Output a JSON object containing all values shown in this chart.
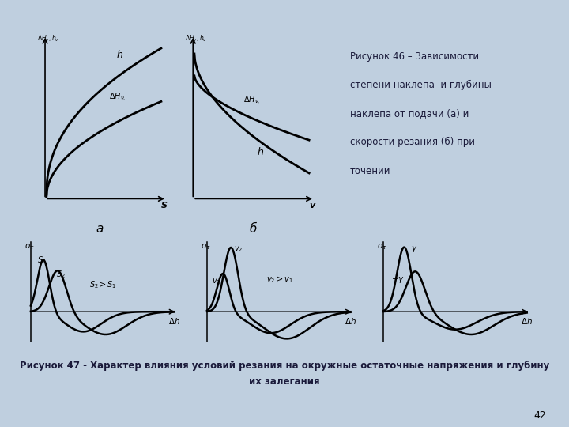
{
  "bg_color": "#bfcfdf",
  "fig_width": 7.2,
  "fig_height": 5.4,
  "caption_46_line1": "Рисунок 46 – Зависимости",
  "caption_46_line2": "степени наклепа  и глубины",
  "caption_46_line3": "наклепа от подачи (а) и",
  "caption_46_line4": "скорости резания (б) при",
  "caption_46_line5": "точении",
  "caption_47": "Рисунок 47 - Характер влияния условий резания на окружные остаточные напряжения и глубину\nих залегания",
  "label_a": "а",
  "label_b": "б",
  "page_num": "42",
  "top_chart_bg": "#d8d5cc",
  "bottom_chart_bg": "#ccc9b8"
}
